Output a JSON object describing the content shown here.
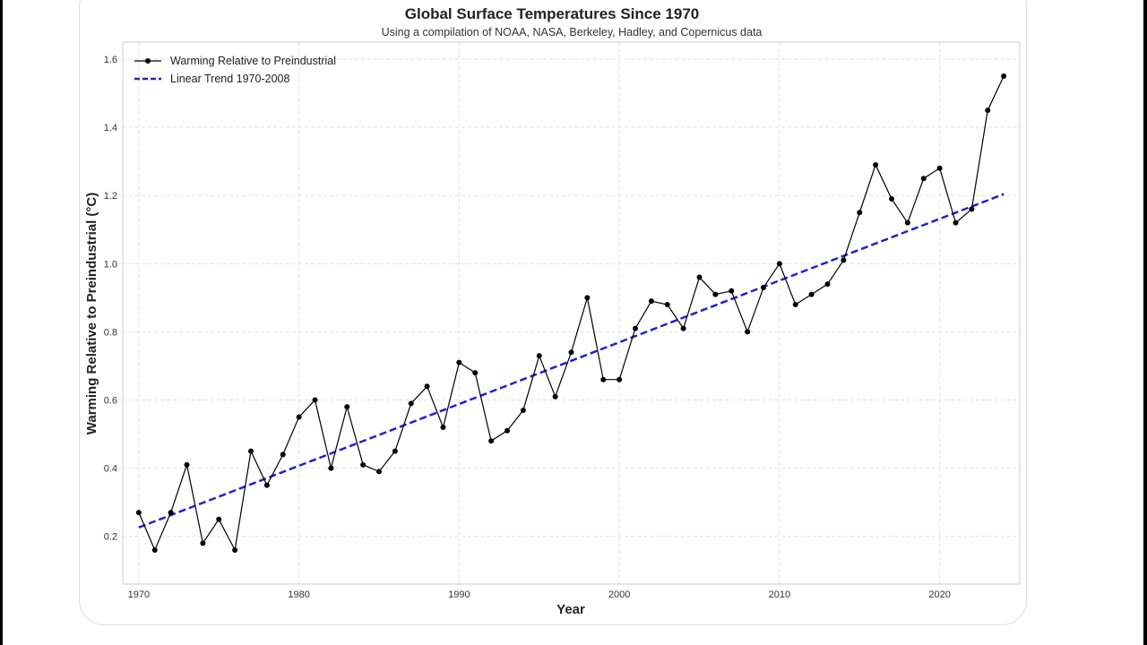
{
  "chart_data": {
    "type": "line",
    "title": "Global Surface Temperatures Since 1970",
    "subtitle": "Using a compilation of NOAA, NASA, Berkeley, Hadley, and Copernicus data",
    "xlabel": "Year",
    "ylabel": "Warming Relative to Preindustrial (°C)",
    "xlim": [
      1969,
      2025
    ],
    "ylim": [
      0.06,
      1.65
    ],
    "xticks": [
      1970,
      1980,
      1990,
      2000,
      2010,
      2020
    ],
    "yticks": [
      0.2,
      0.4,
      0.6,
      0.8,
      1.0,
      1.2,
      1.4,
      1.6
    ],
    "ytick_labels": [
      "0.2",
      "0.4",
      "0.6",
      "0.8",
      "1.0",
      "1.2",
      "1.4",
      "1.6"
    ],
    "grid": true,
    "legend_placement": "top-left",
    "series": [
      {
        "name": "Warming Relative to Preindustrial",
        "style": "solid line with dot markers",
        "color": "#000000",
        "x": [
          1970,
          1971,
          1972,
          1973,
          1974,
          1975,
          1976,
          1977,
          1978,
          1979,
          1980,
          1981,
          1982,
          1983,
          1984,
          1985,
          1986,
          1987,
          1988,
          1989,
          1990,
          1991,
          1992,
          1993,
          1994,
          1995,
          1996,
          1997,
          1998,
          1999,
          2000,
          2001,
          2002,
          2003,
          2004,
          2005,
          2006,
          2007,
          2008,
          2009,
          2010,
          2011,
          2012,
          2013,
          2014,
          2015,
          2016,
          2017,
          2018,
          2019,
          2020,
          2021,
          2022,
          2023,
          2024
        ],
        "y": [
          0.27,
          0.16,
          0.27,
          0.41,
          0.18,
          0.25,
          0.16,
          0.45,
          0.35,
          0.44,
          0.55,
          0.6,
          0.4,
          0.58,
          0.41,
          0.39,
          0.45,
          0.59,
          0.64,
          0.52,
          0.71,
          0.68,
          0.48,
          0.51,
          0.57,
          0.73,
          0.61,
          0.74,
          0.9,
          0.66,
          0.66,
          0.81,
          0.89,
          0.88,
          0.81,
          0.96,
          0.91,
          0.92,
          0.8,
          0.93,
          1.0,
          0.88,
          0.91,
          0.94,
          1.01,
          1.15,
          1.29,
          1.19,
          1.12,
          1.25,
          1.28,
          1.12,
          1.16,
          1.45,
          1.55
        ]
      },
      {
        "name": "Linear Trend 1970-2008",
        "style": "dashed",
        "color": "#2222cc",
        "x": [
          1970,
          2024
        ],
        "y": [
          0.226,
          1.204
        ]
      }
    ]
  }
}
